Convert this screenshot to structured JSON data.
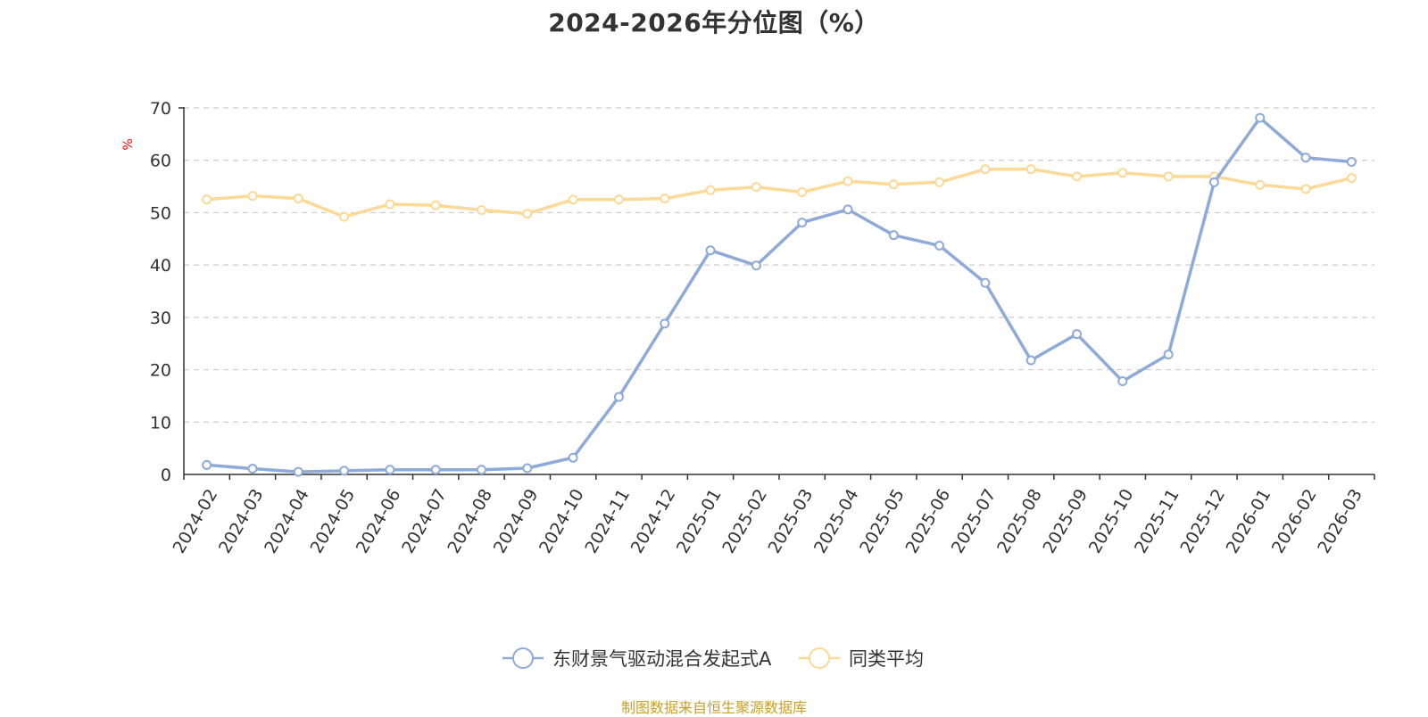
{
  "title": "2024-2026年分位图（%）",
  "source_note": "制图数据来自恒生聚源数据库",
  "chart_data": {
    "type": "line",
    "title": "2024-2026年分位图（%）",
    "ylabel": "%",
    "ylim": [
      0,
      70
    ],
    "yticks": [
      0,
      10,
      20,
      30,
      40,
      50,
      60,
      70
    ],
    "grid": true,
    "legend_position": "bottom-center",
    "categories": [
      "2024-02",
      "2024-03",
      "2024-04",
      "2024-05",
      "2024-06",
      "2024-07",
      "2024-08",
      "2024-09",
      "2024-10",
      "2024-11",
      "2024-12",
      "2025-01",
      "2025-02",
      "2025-03",
      "2025-04",
      "2025-05",
      "2025-06",
      "2025-07",
      "2025-08",
      "2025-09",
      "2025-10",
      "2025-11",
      "2025-12",
      "2026-01",
      "2026-02",
      "2026-03"
    ],
    "series": [
      {
        "name": "东财景气驱动混合发起式A",
        "color": "#8eaad8",
        "values": [
          1.8,
          1.1,
          0.5,
          0.7,
          0.9,
          0.9,
          0.9,
          1.2,
          3.2,
          14.8,
          28.8,
          42.8,
          39.9,
          48.1,
          50.6,
          45.7,
          43.7,
          36.6,
          21.8,
          26.8,
          17.8,
          22.9,
          55.8,
          68.1,
          60.5,
          59.7
        ]
      },
      {
        "name": "同类平均",
        "color": "#fcd996",
        "values": [
          52.5,
          53.2,
          52.7,
          49.2,
          51.6,
          51.4,
          50.5,
          49.8,
          52.5,
          52.5,
          52.7,
          54.3,
          54.9,
          53.9,
          56.0,
          55.4,
          55.8,
          58.3,
          58.3,
          56.9,
          57.6,
          56.9,
          56.9,
          55.3,
          54.5,
          56.6
        ]
      }
    ]
  }
}
